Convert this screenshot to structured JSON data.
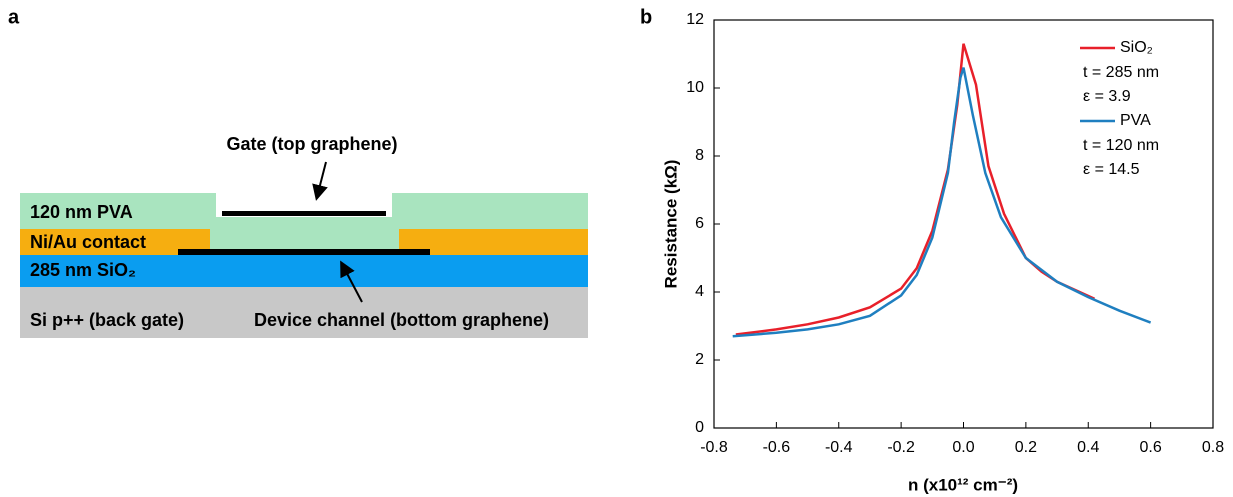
{
  "panel_a": {
    "label": "a",
    "layers": [
      "120 nm PVA",
      "Ni/Au contact",
      "285 nm SiO₂",
      "Si p++ (back gate)"
    ],
    "annotations": [
      "Gate (top graphene)",
      "Device channel (bottom graphene)"
    ]
  },
  "chart_data": {
    "type": "line",
    "panel_label": "b",
    "xlabel": "n (x10¹² cm⁻²)",
    "ylabel": "Resistance (kΩ)",
    "xlim": [
      -0.8,
      0.8
    ],
    "xticks": [
      -0.8,
      -0.6,
      -0.4,
      -0.2,
      {
        "value": 0,
        "label": "0.0"
      },
      0.2,
      0.4,
      0.6,
      0.8
    ],
    "ylim": [
      0,
      12
    ],
    "yticks": [
      0,
      2,
      4,
      6,
      8,
      10,
      12
    ],
    "series": [
      {
        "name": "SiO₂",
        "color": "#e8202a",
        "notes": [
          "t = 285 nm",
          "ε = 3.9"
        ],
        "x": [
          -0.73,
          -0.6,
          -0.5,
          -0.4,
          -0.3,
          -0.2,
          -0.15,
          -0.1,
          -0.05,
          -0.02,
          0,
          0.04,
          0.08,
          0.13,
          0.2,
          0.25,
          0.3,
          0.42
        ],
        "values": [
          2.75,
          2.9,
          3.05,
          3.25,
          3.55,
          4.1,
          4.7,
          5.8,
          7.6,
          9.5,
          11.3,
          10.1,
          7.7,
          6.3,
          5.0,
          4.6,
          4.3,
          3.8
        ]
      },
      {
        "name": "PVA",
        "color": "#1f7fc0",
        "notes": [
          "t = 120 nm",
          "ε = 14.5"
        ],
        "x": [
          -0.74,
          -0.6,
          -0.5,
          -0.4,
          -0.3,
          -0.2,
          -0.15,
          -0.1,
          -0.05,
          -0.03,
          -0.01,
          0,
          0.03,
          0.07,
          0.12,
          0.2,
          0.3,
          0.4,
          0.5,
          0.6
        ],
        "values": [
          2.7,
          2.8,
          2.9,
          3.05,
          3.3,
          3.9,
          4.5,
          5.6,
          7.5,
          9.0,
          10.3,
          10.6,
          9.2,
          7.5,
          6.2,
          5.0,
          4.3,
          3.85,
          3.45,
          3.1
        ]
      }
    ]
  }
}
